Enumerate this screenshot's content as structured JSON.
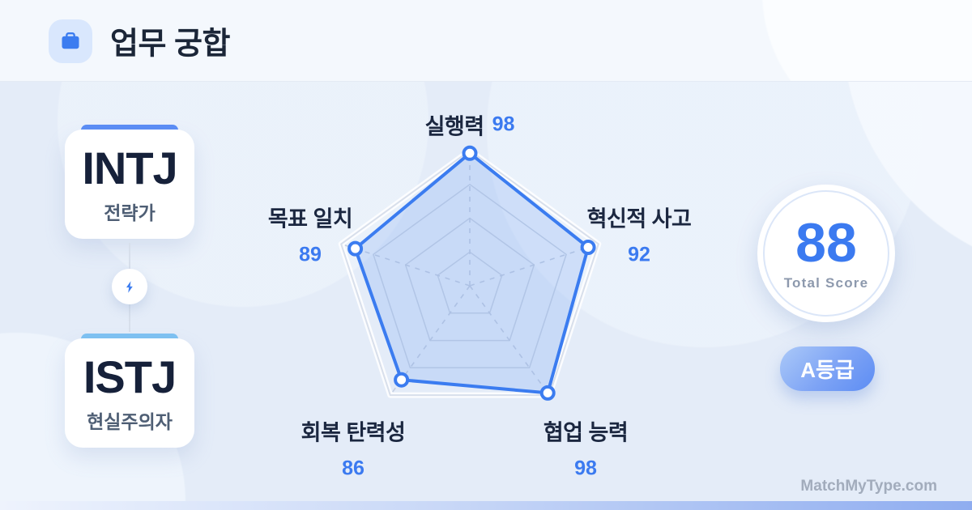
{
  "header": {
    "title": "업무 궁합",
    "icon": "briefcase-icon"
  },
  "pair": {
    "top": {
      "type": "INTJ",
      "nickname": "전략가",
      "accent": "#5b8df5"
    },
    "bottom": {
      "type": "ISTJ",
      "nickname": "현실주의자",
      "accent": "#7ec2f2"
    },
    "connector_icon": "lightning-bolt"
  },
  "chart_data": {
    "type": "radar",
    "categories": [
      "실행력",
      "혁신적 사고",
      "협업 능력",
      "회복 탄력성",
      "목표 일치"
    ],
    "values": [
      98,
      92,
      98,
      86,
      89
    ],
    "max": 100,
    "grid": {
      "rings": [
        0.25,
        0.5,
        0.75,
        1
      ],
      "spokes": "dashed",
      "shape": "pentagon"
    },
    "stroke_color": "#3b7cf0",
    "fill_color": "rgba(59,124,240,0.16)",
    "ring_color": "#c9d3e4",
    "spoke_color": "#c4cfe2",
    "outer_ring_color": "#d8dfeb"
  },
  "score": {
    "value": "88",
    "label": "Total Score",
    "grade": "A등급"
  },
  "watermark": "MatchMyType.com",
  "colors": {
    "primary_blue": "#3b7af0",
    "navy_text": "#1b2638",
    "body_bg": "#e4ecf8",
    "header_bg": "#f4f8fd"
  }
}
